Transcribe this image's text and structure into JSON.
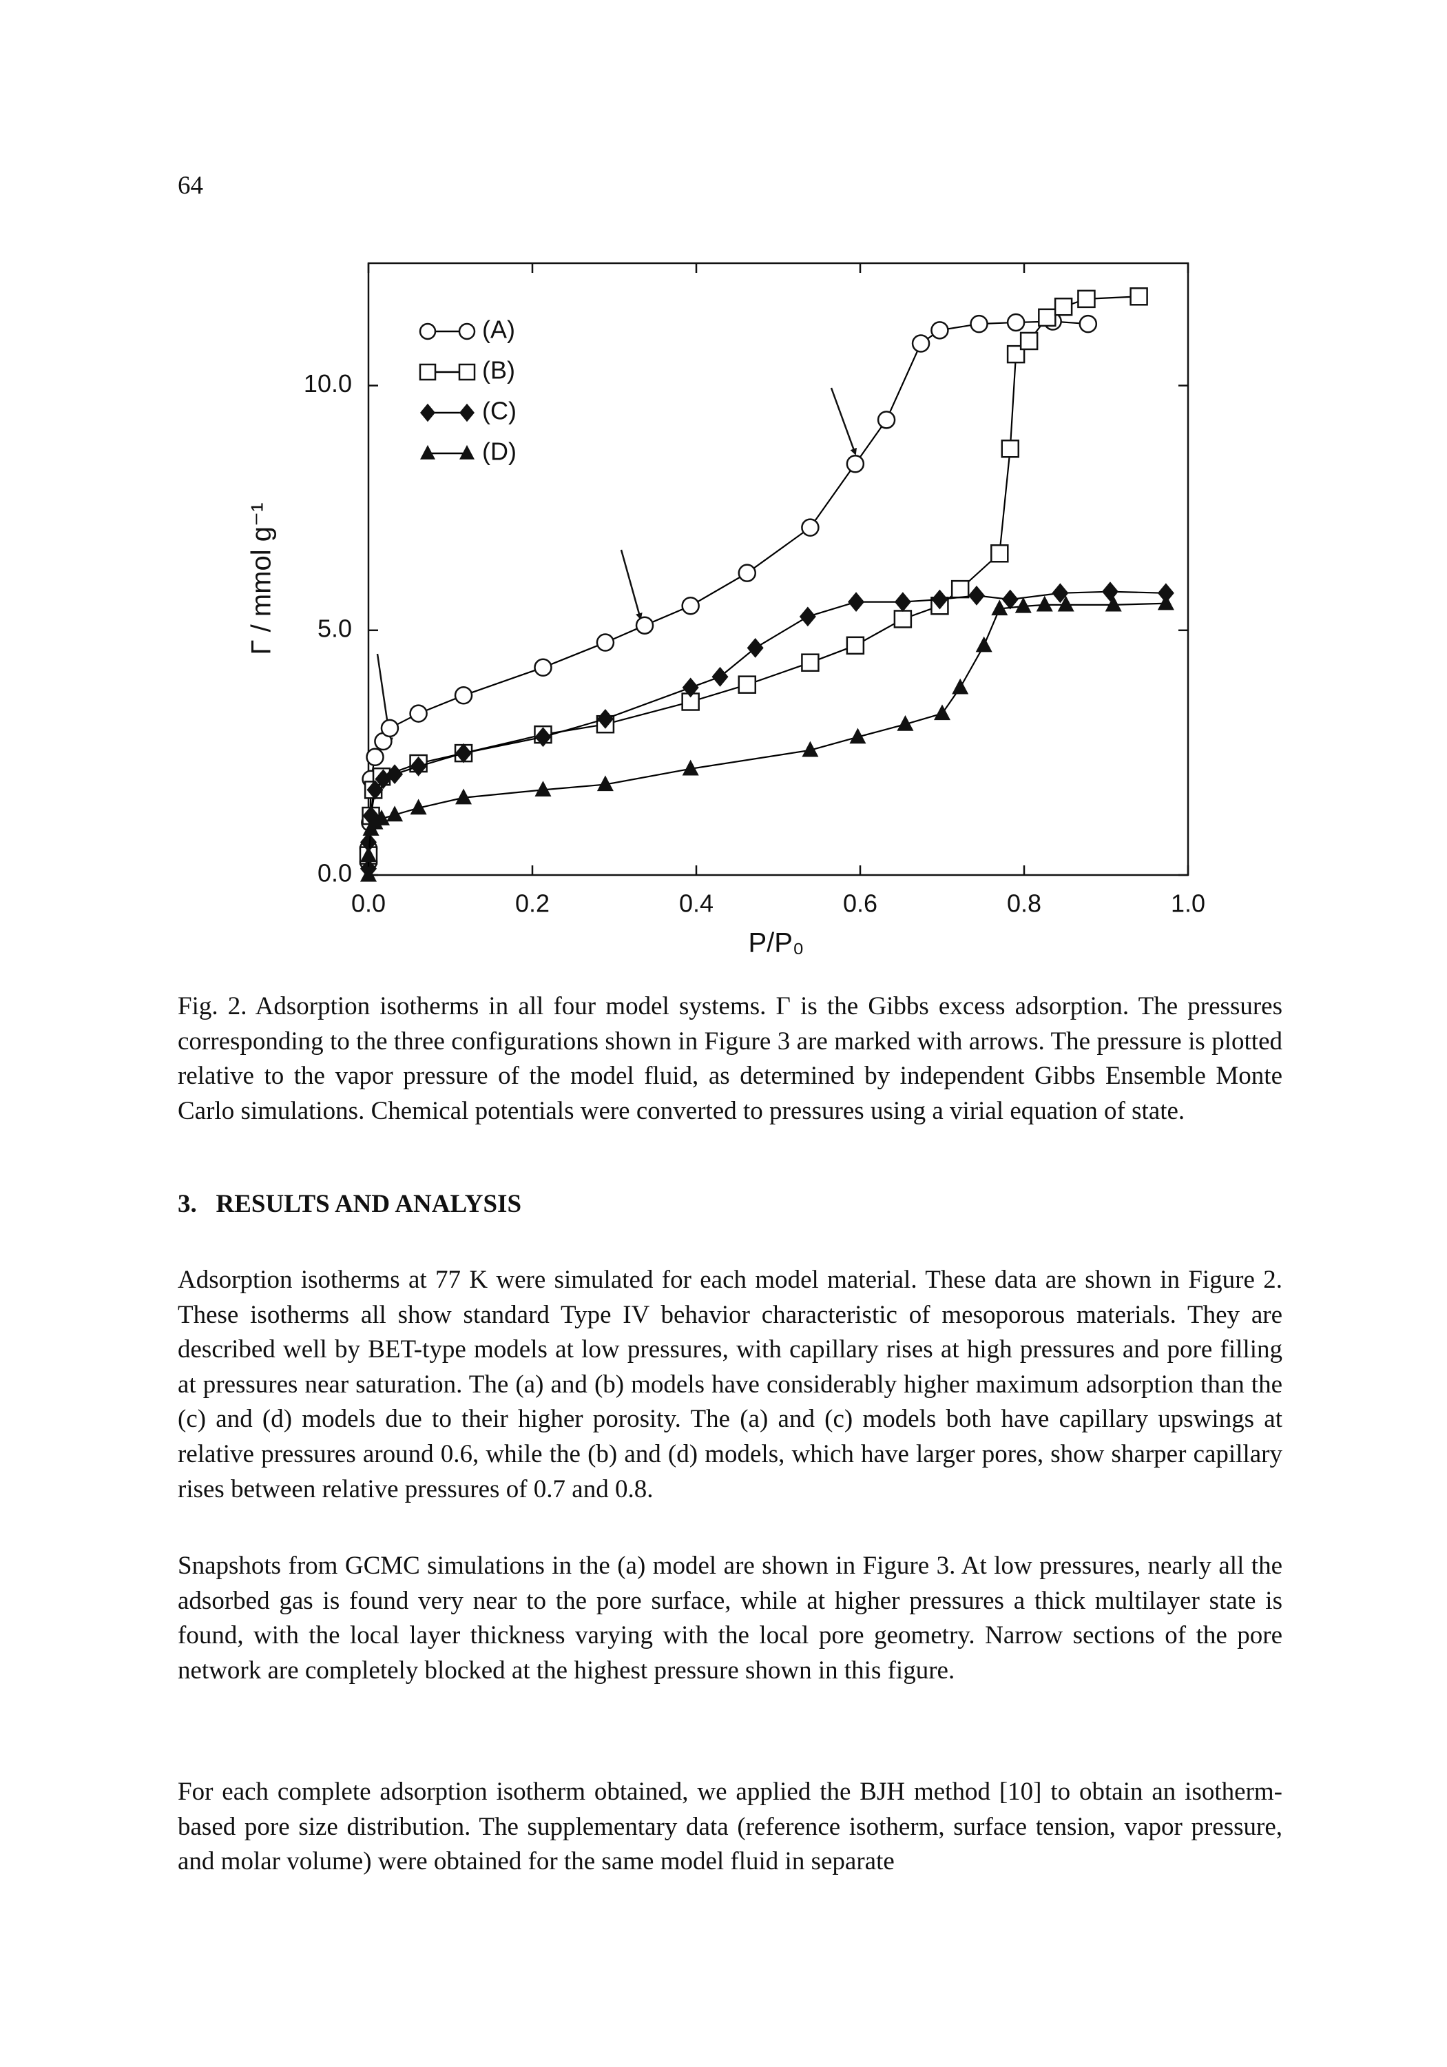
{
  "page_number": "64",
  "chart_data": {
    "type": "line",
    "x_label": "P/P₀",
    "y_label": "Γ / mmol g⁻¹",
    "xlim": [
      0,
      1.0
    ],
    "ylim": [
      0,
      12.5
    ],
    "xticks": [
      {
        "value": 0,
        "label": "0.0"
      },
      {
        "value": 0.2,
        "label": "0.2"
      },
      {
        "value": 0.4,
        "label": "0.4"
      },
      {
        "value": 0.6,
        "label": "0.6"
      },
      {
        "value": 0.8,
        "label": "0.8"
      },
      {
        "value": 1.0,
        "label": "1.0"
      }
    ],
    "yticks": [
      {
        "value": 0,
        "label": "0.0"
      },
      {
        "value": 5,
        "label": "5.0"
      },
      {
        "value": 10,
        "label": "10.0"
      }
    ],
    "legend": "upper left",
    "series": [
      {
        "name": "(A)",
        "color": "#000000",
        "marker": "circle",
        "x": [
          0.0,
          0.0,
          0.002,
          0.003,
          0.008,
          0.018,
          0.026,
          0.061,
          0.116,
          0.213,
          0.289,
          0.337,
          0.393,
          0.462,
          0.539,
          0.594,
          0.632,
          0.674,
          0.697,
          0.745,
          0.79,
          0.835,
          0.878
        ],
        "values": [
          0.27,
          0.54,
          1.07,
          1.96,
          2.41,
          2.73,
          3.0,
          3.3,
          3.67,
          4.24,
          4.75,
          5.1,
          5.5,
          6.17,
          7.1,
          8.4,
          9.3,
          10.86,
          11.13,
          11.26,
          11.29,
          11.31,
          11.26
        ]
      },
      {
        "name": "(B)",
        "color": "#000000",
        "marker": "square",
        "x": [
          0.0,
          0.003,
          0.006,
          0.016,
          0.061,
          0.116,
          0.213,
          0.289,
          0.393,
          0.462,
          0.539,
          0.594,
          0.652,
          0.697,
          0.722,
          0.77,
          0.783,
          0.79,
          0.806,
          0.828,
          0.848,
          0.876,
          0.94
        ],
        "values": [
          0.4,
          1.21,
          1.74,
          2.01,
          2.28,
          2.49,
          2.87,
          3.08,
          3.54,
          3.89,
          4.34,
          4.69,
          5.23,
          5.5,
          5.84,
          6.57,
          8.71,
          10.64,
          10.91,
          11.39,
          11.61,
          11.77,
          11.82
        ]
      },
      {
        "name": "(C)",
        "color": "#000000",
        "marker": "diamond",
        "x": [
          0.0,
          0.0,
          0.003,
          0.008,
          0.018,
          0.032,
          0.061,
          0.116,
          0.213,
          0.289,
          0.393,
          0.429,
          0.472,
          0.536,
          0.595,
          0.652,
          0.697,
          0.742,
          0.783,
          0.844,
          0.905,
          0.973
        ],
        "values": [
          0.13,
          0.67,
          1.21,
          1.74,
          1.96,
          2.06,
          2.22,
          2.49,
          2.82,
          3.19,
          3.83,
          4.05,
          4.64,
          5.28,
          5.58,
          5.58,
          5.63,
          5.71,
          5.63,
          5.76,
          5.79,
          5.76
        ]
      },
      {
        "name": "(D)",
        "color": "#000000",
        "marker": "triangle",
        "x": [
          0.0,
          0.0,
          0.003,
          0.008,
          0.016,
          0.032,
          0.061,
          0.116,
          0.213,
          0.289,
          0.393,
          0.539,
          0.597,
          0.655,
          0.7,
          0.722,
          0.751,
          0.77,
          0.799,
          0.825,
          0.851,
          0.909,
          0.973
        ],
        "values": [
          0.0,
          0.4,
          0.94,
          1.07,
          1.15,
          1.23,
          1.37,
          1.58,
          1.74,
          1.85,
          2.17,
          2.55,
          2.82,
          3.08,
          3.3,
          3.83,
          4.69,
          5.44,
          5.49,
          5.52,
          5.52,
          5.52,
          5.55
        ]
      }
    ]
  },
  "caption": "Fig. 2. Adsorption isotherms in all four model systems. Γ is the Gibbs excess adsorption. The pressures corresponding to the three configurations shown in Figure 3 are marked with arrows. The pressure is plotted relative to the vapor pressure of the model fluid, as determined by independent Gibbs Ensemble Monte Carlo simulations. Chemical potentials were converted to pressures using a virial equation of state.",
  "section_heading": "3.   RESULTS AND ANALYSIS",
  "paragraphs": [
    "Adsorption isotherms at 77 K were simulated for each model material. These data are shown in Figure 2. These isotherms all show standard Type IV behavior characteristic of mesoporous materials. They are described well by BET-type models at low pressures, with capillary rises at high pressures and pore filling at pressures near saturation. The (a) and (b) models have considerably higher maximum adsorption than the (c) and (d) models due to their higher porosity. The (a) and (c) models both have capillary upswings at relative pressures around 0.6, while the (b) and (d) models, which have larger pores, show sharper capillary rises between relative pressures of 0.7 and 0.8.",
    "Snapshots from GCMC simulations in the (a) model are shown in Figure 3. At low pressures, nearly all the adsorbed gas is found very near to the pore surface, while at higher pressures a thick multilayer state is found, with the local layer thickness varying with the local pore geometry. Narrow sections of the pore network are completely blocked at the highest pressure shown in this figure.",
    "For each complete adsorption isotherm obtained, we applied the BJH method [10] to obtain an isotherm-based pore size distribution. The supplementary data (reference isotherm, surface tension, vapor pressure, and molar volume) were obtained for the same model fluid in separate"
  ]
}
